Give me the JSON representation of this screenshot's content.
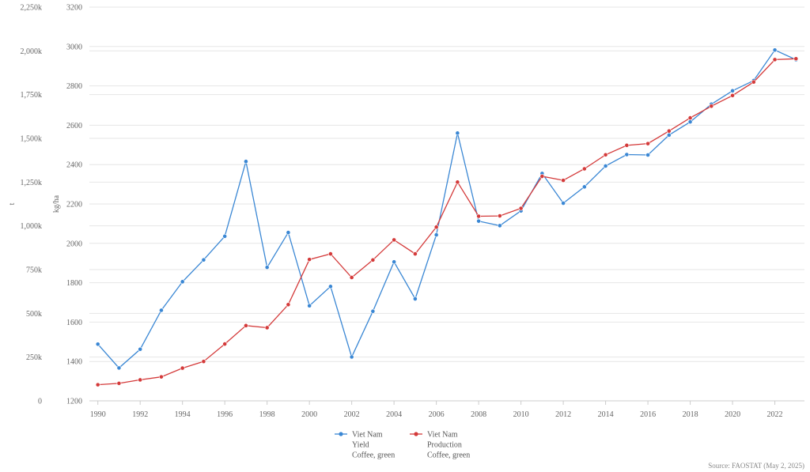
{
  "chart_data": {
    "type": "line",
    "x": [
      1990,
      1991,
      1992,
      1993,
      1994,
      1995,
      1996,
      1997,
      1998,
      1999,
      2000,
      2001,
      2002,
      2003,
      2004,
      2005,
      2006,
      2007,
      2008,
      2009,
      2010,
      2011,
      2012,
      2013,
      2014,
      2015,
      2016,
      2017,
      2018,
      2019,
      2020,
      2021,
      2022,
      2023
    ],
    "x_ticks": [
      "1990",
      "1992",
      "1994",
      "1996",
      "1998",
      "2000",
      "2002",
      "2004",
      "2006",
      "2008",
      "2010",
      "2012",
      "2014",
      "2016",
      "2018",
      "2020",
      "2022"
    ],
    "left_axis": {
      "title": "t",
      "ylim": [
        0,
        2250000
      ],
      "ticks": [
        0,
        250000,
        500000,
        750000,
        1000000,
        1250000,
        1500000,
        1750000,
        2000000,
        2250000
      ],
      "tick_labels": [
        "0",
        "250k",
        "500k",
        "750k",
        "1,000k",
        "1,250k",
        "1,500k",
        "1,750k",
        "2,000k",
        "2,250k"
      ]
    },
    "right_axis": {
      "title": "kg/ha",
      "ylim": [
        1200,
        3200
      ],
      "ticks": [
        1200,
        1400,
        1600,
        1800,
        2000,
        2200,
        2400,
        2600,
        2800,
        3000,
        3200
      ],
      "tick_labels": [
        "1200",
        "1400",
        "1600",
        "1800",
        "2000",
        "2200",
        "2400",
        "2600",
        "2800",
        "3000",
        "3200"
      ]
    },
    "series": [
      {
        "name": "Viet Nam\nYield\nCoffee, green",
        "legend_lines": [
          "Viet Nam",
          "Yield",
          "Coffee, green"
        ],
        "axis": "right",
        "color": "#3a87d4",
        "values": [
          1488,
          1367,
          1462,
          1660,
          1805,
          1916,
          2036,
          2416,
          1878,
          2055,
          1683,
          1781,
          1423,
          1655,
          1906,
          1718,
          2043,
          2560,
          2113,
          2090,
          2165,
          2355,
          2204,
          2287,
          2393,
          2451,
          2449,
          2550,
          2617,
          2707,
          2775,
          2827,
          2982,
          2933
        ]
      },
      {
        "name": "Viet Nam\nProduction\nCoffee, green",
        "legend_lines": [
          "Viet Nam",
          "Production",
          "Coffee, green"
        ],
        "axis": "left",
        "color": "#d43a3a",
        "values": [
          92000,
          100000,
          120000,
          137000,
          187000,
          225000,
          325000,
          430000,
          418000,
          550000,
          808000,
          840000,
          705000,
          805000,
          920000,
          840000,
          993000,
          1250000,
          1055000,
          1057000,
          1100000,
          1283000,
          1260000,
          1326000,
          1406000,
          1460000,
          1470000,
          1542000,
          1617000,
          1684000,
          1745000,
          1822000,
          1950000,
          1955000
        ]
      }
    ],
    "grid": true,
    "legend_position": "bottom-center",
    "source": "Source: FAOSTAT (May 2, 2025)"
  }
}
